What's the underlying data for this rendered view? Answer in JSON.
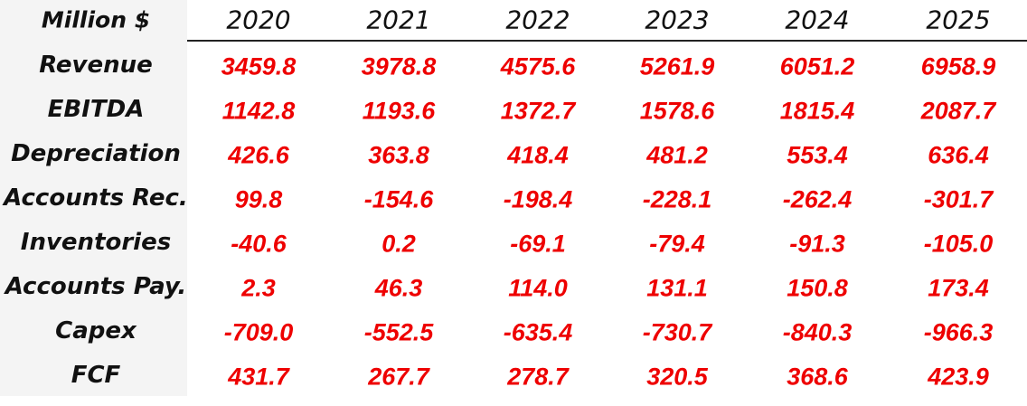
{
  "header": {
    "title": "Million $",
    "years": [
      "2020",
      "2021",
      "2022",
      "2023",
      "2024",
      "2025"
    ]
  },
  "rows": [
    {
      "label": "Revenue",
      "values": [
        "3459.8",
        "3978.8",
        "4575.6",
        "5261.9",
        "6051.2",
        "6958.9"
      ]
    },
    {
      "label": "EBITDA",
      "values": [
        "1142.8",
        "1193.6",
        "1372.7",
        "1578.6",
        "1815.4",
        "2087.7"
      ]
    },
    {
      "label": "Depreciation",
      "values": [
        "426.6",
        "363.8",
        "418.4",
        "481.2",
        "553.4",
        "636.4"
      ]
    },
    {
      "label": "Accounts Rec.",
      "values": [
        "99.8",
        "-154.6",
        "-198.4",
        "-228.1",
        "-262.4",
        "-301.7"
      ]
    },
    {
      "label": "Inventories",
      "values": [
        "-40.6",
        "0.2",
        "-69.1",
        "-79.4",
        "-91.3",
        "-105.0"
      ]
    },
    {
      "label": "Accounts Pay.",
      "values": [
        "2.3",
        "46.3",
        "114.0",
        "131.1",
        "150.8",
        "173.4"
      ]
    },
    {
      "label": "Capex",
      "values": [
        "-709.0",
        "-552.5",
        "-635.4",
        "-730.7",
        "-840.3",
        "-966.3"
      ]
    },
    {
      "label": "FCF",
      "values": [
        "431.7",
        "267.7",
        "278.7",
        "320.5",
        "368.6",
        "423.9"
      ]
    }
  ]
}
